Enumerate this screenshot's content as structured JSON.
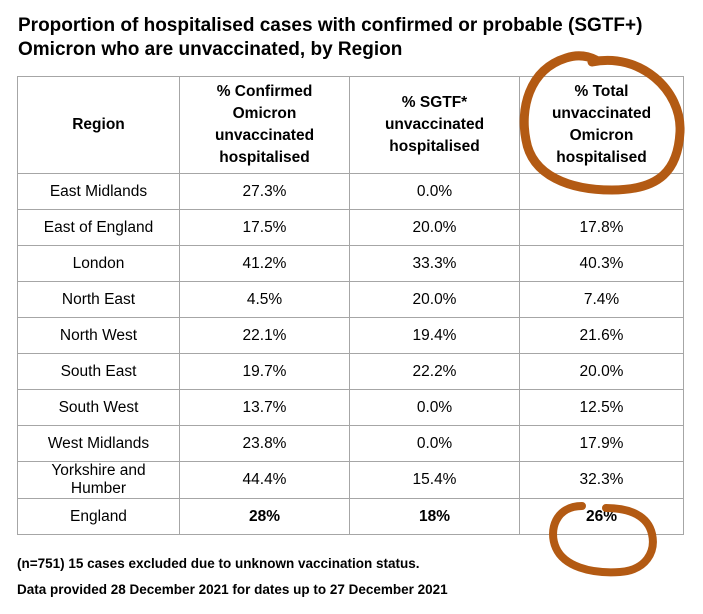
{
  "title": "Proportion of hospitalised cases with confirmed or probable (SGTF+) Omicron who are unvaccinated, by Region",
  "table": {
    "headers": [
      "Region",
      "% Confirmed Omicron unvaccinated hospitalised",
      "% SGTF* unvaccinated hospitalised",
      "% Total unvaccinated Omicron hospitalised"
    ],
    "rows": [
      {
        "region": "East Midlands",
        "confirmed": "27.3%",
        "sgtf": "0.0%",
        "total": ""
      },
      {
        "region": "East of England",
        "confirmed": "17.5%",
        "sgtf": "20.0%",
        "total": "17.8%"
      },
      {
        "region": "London",
        "confirmed": "41.2%",
        "sgtf": "33.3%",
        "total": "40.3%"
      },
      {
        "region": "North East",
        "confirmed": "4.5%",
        "sgtf": "20.0%",
        "total": "7.4%"
      },
      {
        "region": "North West",
        "confirmed": "22.1%",
        "sgtf": "19.4%",
        "total": "21.6%"
      },
      {
        "region": "South East",
        "confirmed": "19.7%",
        "sgtf": "22.2%",
        "total": "20.0%"
      },
      {
        "region": "South West",
        "confirmed": "13.7%",
        "sgtf": "0.0%",
        "total": "12.5%"
      },
      {
        "region": "West Midlands",
        "confirmed": "23.8%",
        "sgtf": "0.0%",
        "total": "17.9%"
      },
      {
        "region": "Yorkshire and Humber",
        "confirmed": "44.4%",
        "sgtf": "15.4%",
        "total": "32.3%"
      }
    ],
    "england": {
      "region": "England",
      "confirmed": "28%",
      "sgtf": "18%",
      "total": "26%"
    }
  },
  "notes": {
    "line1": "(n=751) 15 cases excluded due to unknown vaccination status.",
    "line2": "Data provided 28 December 2021 for dates up to 27 December 2021"
  },
  "annotation": {
    "color": "#b35a13"
  }
}
